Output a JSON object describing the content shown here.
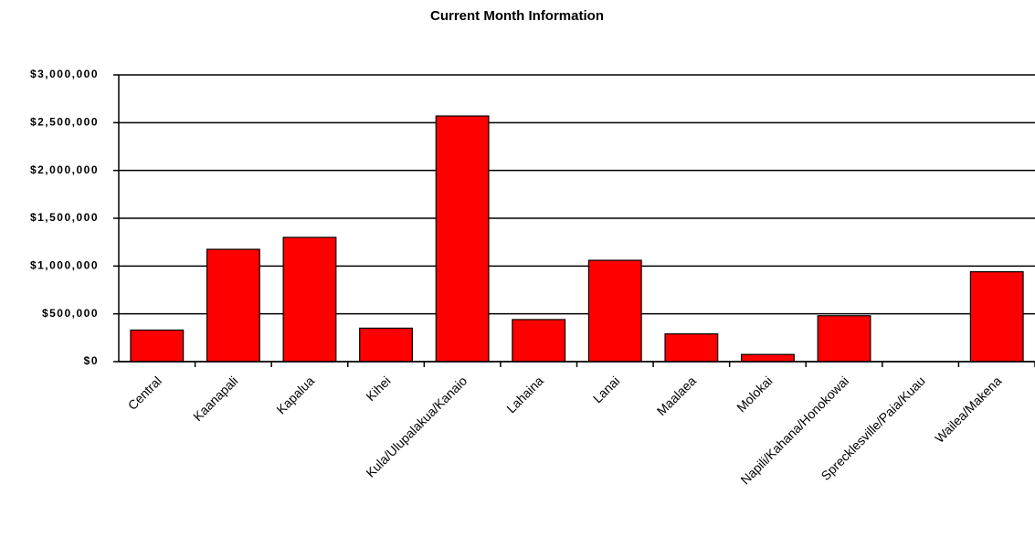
{
  "chart_data": {
    "type": "bar",
    "title": "Current Month Information",
    "categories": [
      "Central",
      "Kaanapali",
      "Kapalua",
      "Kihei",
      "Kula/Ulupalakua/Kanaio",
      "Lahaina",
      "Lanai",
      "Maalaea",
      "Molokai",
      "Napili/Kahana/Honokowai",
      "Sprecklesville/Paia/Kuau",
      "Wailea/Makena"
    ],
    "values": [
      330000,
      1175000,
      1300000,
      350000,
      2570000,
      440000,
      1060000,
      290000,
      75000,
      480000,
      0,
      940000
    ],
    "color": "#ff0000",
    "ylim": [
      0,
      3000000
    ],
    "yticks": [
      {
        "value": 0,
        "label": "$0"
      },
      {
        "value": 500000,
        "label": "$500,000"
      },
      {
        "value": 1000000,
        "label": "$1,000,000"
      },
      {
        "value": 1500000,
        "label": "$1,500,000"
      },
      {
        "value": 2000000,
        "label": "$2,000,000"
      },
      {
        "value": 2500000,
        "label": "$2,500,000"
      },
      {
        "value": 3000000,
        "label": "$3,000,000"
      }
    ],
    "grid": true
  }
}
